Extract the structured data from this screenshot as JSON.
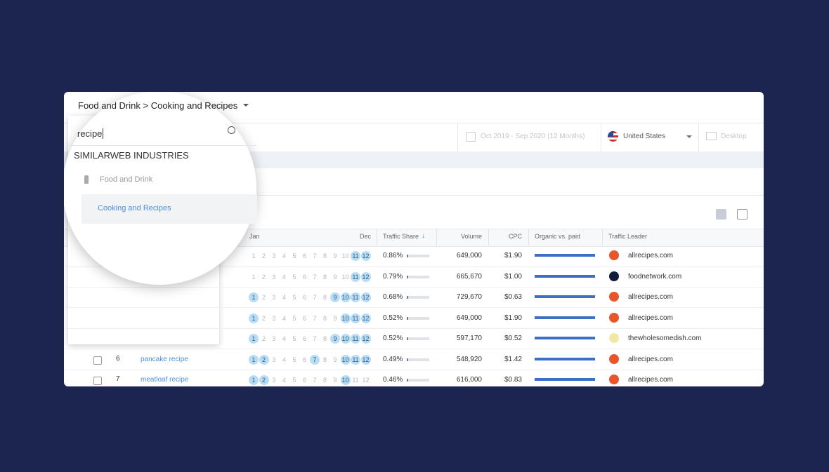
{
  "breadcrumb": "Food and Drink > Cooking and Recipes",
  "search": {
    "query": "recipe",
    "section": "SIMILARWEB INDUSTRIES",
    "items": [
      "Food and Drink",
      "Cooking and Recipes"
    ]
  },
  "filters": {
    "date_range": "Oct 2019 - Sep 2020 (12 Months)",
    "country": "United States",
    "device": "Desktop"
  },
  "table": {
    "columns": {
      "start": "Jan",
      "end": "Dec",
      "share": "Traffic Share",
      "volume": "Volume",
      "cpc": "CPC",
      "organic": "Organic vs. paid",
      "leader": "Traffic Leader"
    },
    "months": [
      1,
      2,
      3,
      4,
      5,
      6,
      7,
      8,
      9,
      10,
      11,
      12
    ],
    "rows": [
      {
        "active_months": [
          11,
          12
        ],
        "traffic_share": "0.86%",
        "volume": "649,000",
        "cpc": "$1.90",
        "leader": "allrecipes.com",
        "leader_color": "#e8562a"
      },
      {
        "active_months": [
          11,
          12
        ],
        "traffic_share": "0.79%",
        "volume": "665,670",
        "cpc": "$1.00",
        "leader": "foodnetwork.com",
        "leader_color": "#0f1f3a"
      },
      {
        "active_months": [
          1,
          9,
          10,
          11,
          12
        ],
        "traffic_share": "0.68%",
        "volume": "729,670",
        "cpc": "$0.63",
        "leader": "allrecipes.com",
        "leader_color": "#e8562a"
      },
      {
        "active_months": [
          1,
          10,
          11,
          12
        ],
        "traffic_share": "0.52%",
        "volume": "649,000",
        "cpc": "$1.90",
        "leader": "allrecipes.com",
        "leader_color": "#e8562a"
      },
      {
        "active_months": [
          1,
          9,
          10,
          11,
          12
        ],
        "traffic_share": "0.52%",
        "volume": "597,170",
        "cpc": "$0.52",
        "leader": "thewholesomedish.com",
        "leader_color": "#f3e7a6"
      },
      {
        "rank": 6,
        "keyword": "pancake recipe",
        "active_months": [
          1,
          2,
          7,
          10,
          11,
          12
        ],
        "traffic_share": "0.49%",
        "volume": "548,920",
        "cpc": "$1.42",
        "leader": "allrecipes.com",
        "leader_color": "#e8562a"
      },
      {
        "rank": 7,
        "keyword": "meatloaf recipe",
        "active_months": [
          1,
          2,
          10
        ],
        "traffic_share": "0.46%",
        "volume": "616,000",
        "cpc": "$0.83",
        "leader": "allrecipes.com",
        "leader_color": "#e8562a"
      }
    ]
  }
}
